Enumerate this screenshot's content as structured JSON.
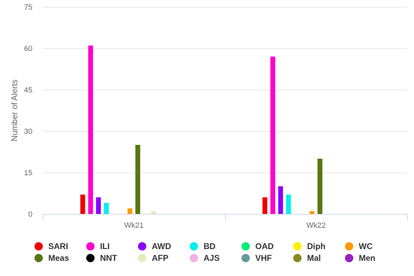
{
  "chart_data": {
    "type": "bar",
    "title": "",
    "xlabel": "",
    "ylabel": "Number of Alerts",
    "ylim": [
      0,
      75
    ],
    "yticks": [
      0,
      15,
      30,
      45,
      60,
      75
    ],
    "categories": [
      "Wk21",
      "Wk22"
    ],
    "grid": true,
    "legend_position": "bottom",
    "series": [
      {
        "name": "SARI",
        "color": "#ee0000",
        "values": [
          7,
          6
        ]
      },
      {
        "name": "ILI",
        "color": "#ff00cc",
        "values": [
          61,
          57
        ]
      },
      {
        "name": "AWD",
        "color": "#8b00ff",
        "values": [
          6,
          10
        ]
      },
      {
        "name": "BD",
        "color": "#00eeee",
        "values": [
          4,
          7
        ]
      },
      {
        "name": "OAD",
        "color": "#00ee77",
        "values": [
          0,
          0
        ]
      },
      {
        "name": "Diph",
        "color": "#ffee00",
        "values": [
          0,
          0
        ]
      },
      {
        "name": "WC",
        "color": "#ff9900",
        "values": [
          2,
          1
        ]
      },
      {
        "name": "Meas",
        "color": "#557711",
        "values": [
          25,
          20
        ]
      },
      {
        "name": "NNT",
        "color": "#000000",
        "values": [
          0,
          0
        ]
      },
      {
        "name": "AFP",
        "color": "#ddeebb",
        "values": [
          1,
          0
        ]
      },
      {
        "name": "AJS",
        "color": "#eeb3e0",
        "values": [
          0,
          0
        ]
      },
      {
        "name": "VHF",
        "color": "#669999",
        "values": [
          0,
          0
        ]
      },
      {
        "name": "Mal",
        "color": "#888822",
        "values": [
          0,
          0
        ]
      },
      {
        "name": "Men",
        "color": "#9922bb",
        "values": [
          0,
          0
        ]
      }
    ]
  }
}
